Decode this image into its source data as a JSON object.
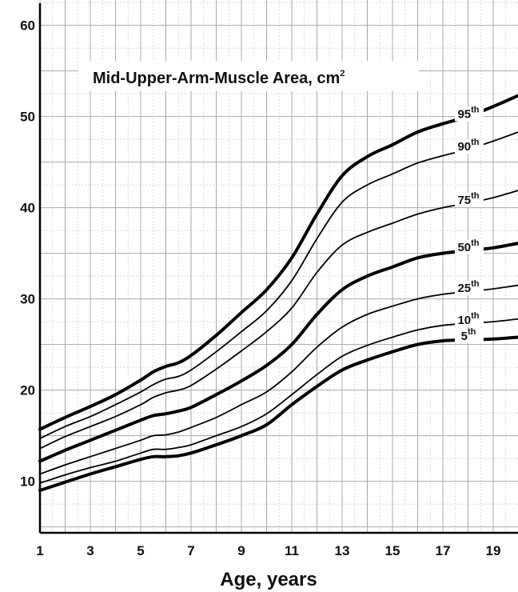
{
  "chart_data": {
    "type": "line",
    "title": "Mid-Upper-Arm-Muscle Area, cm",
    "title_superscript": "2",
    "xlabel": "Age, years",
    "ylabel": "",
    "xlim": [
      1,
      20
    ],
    "ylim": [
      4,
      64
    ],
    "x_ticks": [
      "1",
      "3",
      "5",
      "7",
      "9",
      "11",
      "13",
      "15",
      "17",
      "19"
    ],
    "y_ticks": [
      "10",
      "20",
      "30",
      "40",
      "50",
      "60"
    ],
    "grid": true,
    "x": [
      1,
      2,
      3,
      4,
      5,
      5.5,
      6,
      6.5,
      7,
      8,
      9,
      10,
      11,
      12,
      13,
      14,
      15,
      16,
      17,
      18,
      19,
      20
    ],
    "series": [
      {
        "name": "5",
        "label_sup": "th",
        "bold": true,
        "values": [
          9.0,
          9.9,
          10.8,
          11.6,
          12.4,
          12.7,
          12.7,
          12.8,
          13.1,
          14.0,
          15.0,
          16.2,
          18.4,
          20.4,
          22.2,
          23.3,
          24.2,
          25.0,
          25.4,
          25.5,
          25.6,
          25.8
        ]
      },
      {
        "name": "10",
        "label_sup": "th",
        "bold": false,
        "values": [
          9.8,
          10.7,
          11.5,
          12.2,
          13.1,
          13.5,
          13.5,
          13.7,
          14.0,
          15.0,
          16.0,
          17.4,
          19.5,
          21.7,
          23.7,
          24.9,
          25.8,
          26.6,
          27.1,
          27.3,
          27.5,
          27.8
        ]
      },
      {
        "name": "25",
        "label_sup": "th",
        "bold": false,
        "values": [
          10.8,
          11.8,
          12.7,
          13.6,
          14.5,
          15.0,
          15.1,
          15.4,
          15.9,
          17.0,
          18.4,
          19.8,
          22.0,
          24.7,
          26.9,
          28.3,
          29.2,
          30.0,
          30.5,
          30.8,
          31.1,
          31.5
        ]
      },
      {
        "name": "50",
        "label_sup": "th",
        "bold": true,
        "values": [
          12.2,
          13.4,
          14.5,
          15.6,
          16.7,
          17.2,
          17.4,
          17.7,
          18.1,
          19.5,
          21.0,
          22.7,
          25.0,
          28.3,
          31.0,
          32.5,
          33.5,
          34.5,
          35.0,
          35.3,
          35.6,
          36.1
        ]
      },
      {
        "name": "75",
        "label_sup": "th",
        "bold": false,
        "values": [
          13.6,
          14.9,
          16.0,
          17.1,
          18.4,
          19.2,
          19.7,
          20.0,
          20.5,
          22.3,
          24.3,
          26.4,
          29.0,
          32.9,
          35.9,
          37.3,
          38.3,
          39.3,
          40.0,
          40.5,
          41.1,
          41.9
        ]
      },
      {
        "name": "90",
        "label_sup": "th",
        "bold": false,
        "values": [
          14.7,
          16.0,
          17.1,
          18.4,
          19.8,
          20.6,
          21.2,
          21.5,
          22.2,
          24.2,
          26.4,
          28.7,
          32.0,
          36.6,
          40.6,
          42.5,
          43.7,
          44.9,
          45.7,
          46.4,
          47.3,
          48.3
        ]
      },
      {
        "name": "95",
        "label_sup": "th",
        "bold": true,
        "values": [
          15.7,
          17.0,
          18.2,
          19.5,
          21.1,
          22.0,
          22.6,
          23.0,
          23.8,
          26.0,
          28.5,
          31.0,
          34.5,
          39.3,
          43.5,
          45.6,
          46.9,
          48.3,
          49.2,
          50.0,
          51.1,
          52.3
        ]
      }
    ]
  }
}
